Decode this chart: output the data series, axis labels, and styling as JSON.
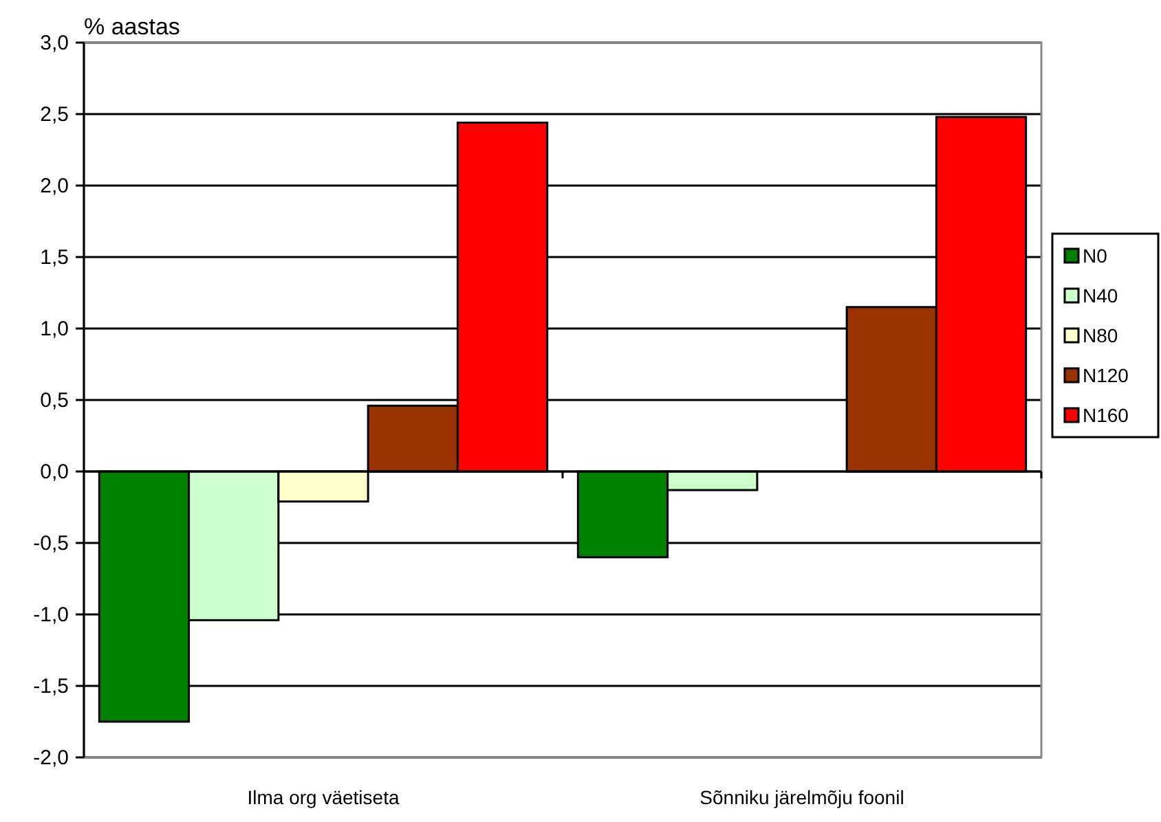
{
  "chart_data": {
    "type": "bar",
    "ylabel": "% aastas",
    "categories": [
      "Ilma org väetiseta",
      "Sõnniku järelmõju foonil"
    ],
    "series": [
      {
        "name": "N0",
        "color": "#008000",
        "values": [
          -1.75,
          -0.6
        ]
      },
      {
        "name": "N40",
        "color": "#ccffcc",
        "values": [
          -1.04,
          -0.13
        ]
      },
      {
        "name": "N80",
        "color": "#ffffcc",
        "values": [
          -0.21,
          null
        ]
      },
      {
        "name": "N120",
        "color": "#993300",
        "values": [
          0.46,
          1.15
        ]
      },
      {
        "name": "N160",
        "color": "#ff0000",
        "values": [
          2.44,
          2.48
        ]
      }
    ],
    "ylim": [
      -2,
      3
    ],
    "yticks": [
      {
        "value": -2,
        "label": "-2,0"
      },
      {
        "value": -1.5,
        "label": "-1,5"
      },
      {
        "value": -1,
        "label": "-1,0"
      },
      {
        "value": -0.5,
        "label": "-0,5"
      },
      {
        "value": 0,
        "label": "0,0"
      },
      {
        "value": 0.5,
        "label": "0,5"
      },
      {
        "value": 1,
        "label": "1,0"
      },
      {
        "value": 1.5,
        "label": "1,5"
      },
      {
        "value": 2,
        "label": "2,0"
      },
      {
        "value": 2.5,
        "label": "2,5"
      },
      {
        "value": 3,
        "label": "3,0"
      }
    ],
    "grid": "y",
    "legend": "right"
  }
}
